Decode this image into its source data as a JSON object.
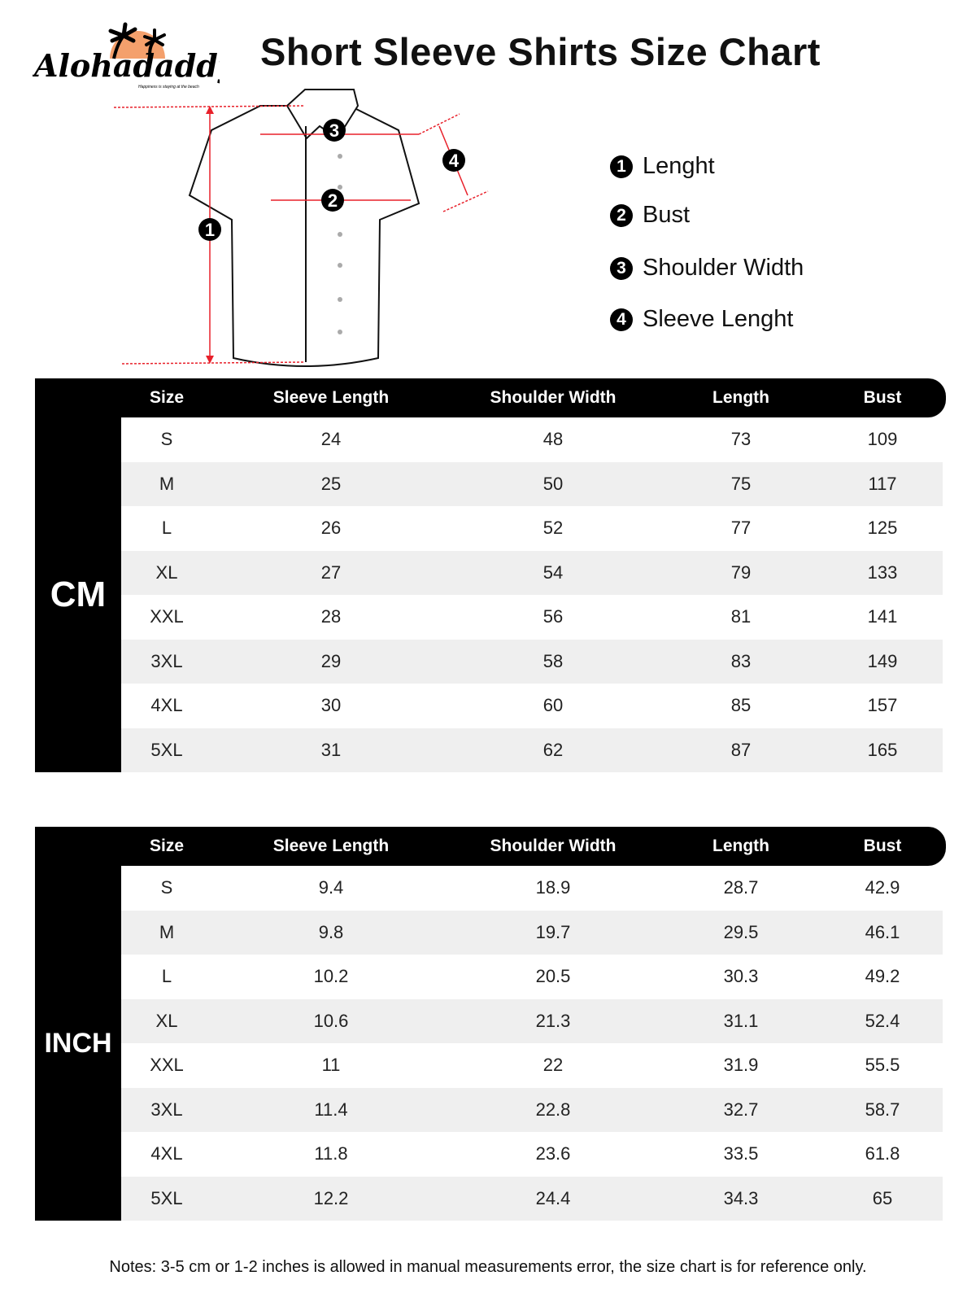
{
  "brand": {
    "name": "Alohadaddy",
    "tagline": "Happiness is staying at the beach",
    "sun_color": "#f4a06c"
  },
  "title": "Short Sleeve Shirts Size Chart",
  "legend": [
    {
      "num": "1",
      "label": "Lenght"
    },
    {
      "num": "2",
      "label": "Bust"
    },
    {
      "num": "3",
      "label": "Shoulder Width"
    },
    {
      "num": "4",
      "label": "Sleeve Lenght"
    }
  ],
  "diagram": {
    "markers": [
      "1",
      "2",
      "3",
      "4"
    ],
    "accent": "#e8202a"
  },
  "columns": [
    "Size",
    "Sleeve Length",
    "Shoulder Width",
    "Length",
    "Bust"
  ],
  "cm": {
    "unit": "CM",
    "rows": [
      [
        "S",
        "24",
        "48",
        "73",
        "109"
      ],
      [
        "M",
        "25",
        "50",
        "75",
        "117"
      ],
      [
        "L",
        "26",
        "52",
        "77",
        "125"
      ],
      [
        "XL",
        "27",
        "54",
        "79",
        "133"
      ],
      [
        "XXL",
        "28",
        "56",
        "81",
        "141"
      ],
      [
        "3XL",
        "29",
        "58",
        "83",
        "149"
      ],
      [
        "4XL",
        "30",
        "60",
        "85",
        "157"
      ],
      [
        "5XL",
        "31",
        "62",
        "87",
        "165"
      ]
    ]
  },
  "inch": {
    "unit": "INCH",
    "rows": [
      [
        "S",
        "9.4",
        "18.9",
        "28.7",
        "42.9"
      ],
      [
        "M",
        "9.8",
        "19.7",
        "29.5",
        "46.1"
      ],
      [
        "L",
        "10.2",
        "20.5",
        "30.3",
        "49.2"
      ],
      [
        "XL",
        "10.6",
        "21.3",
        "31.1",
        "52.4"
      ],
      [
        "XXL",
        "11",
        "22",
        "31.9",
        "55.5"
      ],
      [
        "3XL",
        "11.4",
        "22.8",
        "32.7",
        "58.7"
      ],
      [
        "4XL",
        "11.8",
        "23.6",
        "33.5",
        "61.8"
      ],
      [
        "5XL",
        "12.2",
        "24.4",
        "34.3",
        "65"
      ]
    ]
  },
  "notes": "Notes: 3-5 cm or 1-2 inches is allowed in manual measurements error, the size chart is for reference only."
}
